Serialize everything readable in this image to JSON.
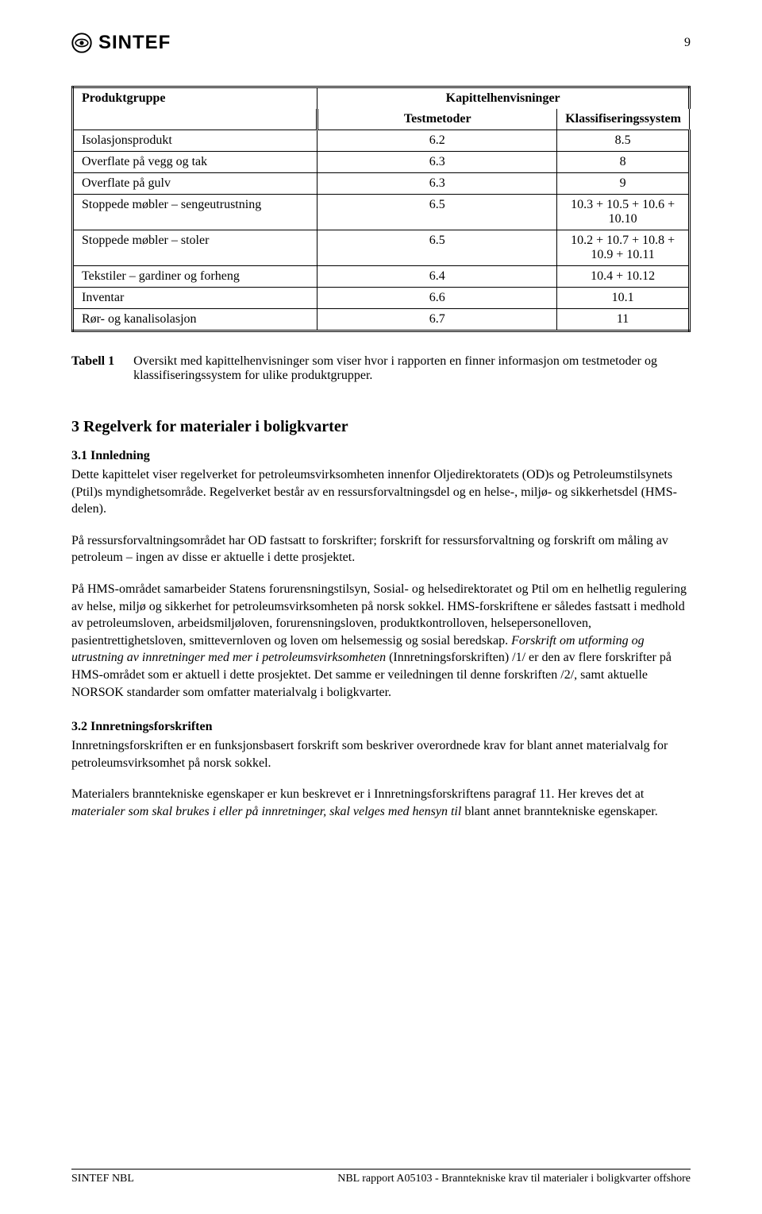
{
  "logo_text": "SINTEF",
  "page_number": "9",
  "table": {
    "header_col1": "Produktgruppe",
    "header_col23": "Kapittelhenvisninger",
    "subheader_col2": "Testmetoder",
    "subheader_col3": "Klassifiseringssystem",
    "rows": [
      {
        "name": "Isolasjonsprodukt",
        "test": "6.2",
        "klass": "8.5"
      },
      {
        "name": "Overflate på vegg og tak",
        "test": "6.3",
        "klass": "8"
      },
      {
        "name": "Overflate på gulv",
        "test": "6.3",
        "klass": "9"
      },
      {
        "name": "Stoppede møbler – sengeutrustning",
        "test": "6.5",
        "klass": "10.3 + 10.5 + 10.6 + 10.10"
      },
      {
        "name": "Stoppede møbler – stoler",
        "test": "6.5",
        "klass": "10.2 + 10.7 + 10.8 + 10.9 + 10.11"
      },
      {
        "name": "Tekstiler – gardiner og forheng",
        "test": "6.4",
        "klass": "10.4 + 10.12"
      },
      {
        "name": "Inventar",
        "test": "6.6",
        "klass": "10.1"
      },
      {
        "name": "Rør- og kanalisolasjon",
        "test": "6.7",
        "klass": "11"
      }
    ]
  },
  "caption_label": "Tabell 1",
  "caption_text": "Oversikt med kapittelhenvisninger som viser hvor i rapporten en finner informasjon om testmetoder og klassifiseringssystem for ulike produktgrupper.",
  "section3_heading": "3   Regelverk for materialer i boligkvarter",
  "section31_heading": "3.1 Innledning",
  "p31a": "Dette kapittelet viser regelverket for petroleumsvirksomheten innenfor Oljedirektoratets (OD)s og Petroleumstilsynets (Ptil)s myndighetsområde. Regelverket består av en ressursforvaltningsdel og en helse-, miljø- og sikkerhetsdel (HMS-delen).",
  "p31b": "På ressursforvaltningsområdet har OD fastsatt to forskrifter; forskrift for ressursforvaltning og forskrift om måling av petroleum – ingen av disse er aktuelle i dette prosjektet.",
  "p31c_1": "På HMS-området samarbeider Statens forurensningstilsyn, Sosial- og helsedirektoratet og Ptil om en helhetlig regulering av helse, miljø og sikkerhet for petroleumsvirksomheten på norsk sokkel. HMS-forskriftene er således fastsatt i medhold av petroleumsloven, arbeidsmiljøloven, forurensningsloven, produktkontrolloven, helsepersonelloven, pasientrettighetsloven, smittevernloven og loven om helsemessig og sosial beredskap. ",
  "p31c_italic": "Forskrift om utforming og utrustning av innretninger med mer i petroleumsvirksomheten",
  "p31c_2": " (Innretningsforskriften) /1/ er den av flere forskrifter på HMS-området som er aktuell i dette prosjektet. Det samme er veiledningen til denne forskriften /2/, samt aktuelle NORSOK standarder som omfatter materialvalg i boligkvarter.",
  "section32_heading": "3.2 Innretningsforskriften",
  "p32a": "Innretningsforskriften er en funksjonsbasert forskrift som beskriver overordnede krav for blant annet materialvalg for petroleumsvirksomhet på norsk sokkel.",
  "p32b_1": "Materialers branntekniske egenskaper er kun beskrevet er i Innretningsforskriftens paragraf 11. Her kreves det at ",
  "p32b_italic": "materialer som skal brukes i eller på innretninger, skal velges med hensyn til",
  "p32b_2": " blant annet branntekniske egenskaper.",
  "footer_left": "SINTEF NBL",
  "footer_right": "NBL rapport A05103 - Branntekniske krav til materialer i boligkvarter offshore"
}
